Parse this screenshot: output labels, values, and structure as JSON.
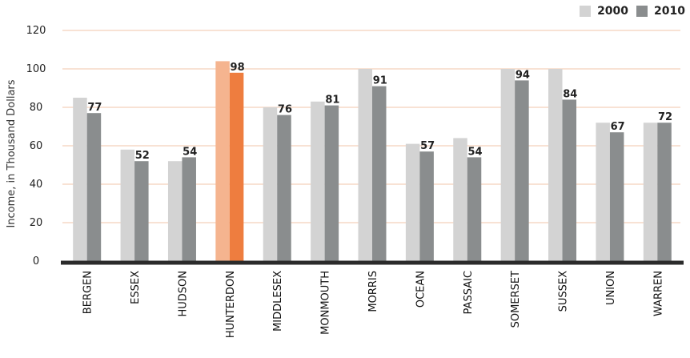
{
  "chart_data": {
    "type": "bar",
    "ylabel": "Income, in Thousand Dollars",
    "ylim": [
      0,
      120
    ],
    "yticks": [
      0,
      20,
      40,
      60,
      80,
      100,
      120
    ],
    "grid": true,
    "legend_position": "top-right",
    "categories": [
      "BERGEN",
      "ESSEX",
      "HUDSON",
      "HUNTERDON",
      "MIDDLESEX",
      "MONMOUTH",
      "MORRIS",
      "OCEAN",
      "PASSAIC",
      "SOMERSET",
      "SUSSEX",
      "UNION",
      "WARREN"
    ],
    "series": [
      {
        "name": "2000",
        "values": [
          85,
          58,
          52,
          104,
          80,
          83,
          100,
          61,
          64,
          100,
          100,
          72,
          72
        ],
        "color": "#d3d3d3",
        "highlight_color": "#f5b48f"
      },
      {
        "name": "2010",
        "values": [
          77,
          52,
          54,
          98,
          76,
          81,
          91,
          57,
          54,
          94,
          84,
          67,
          72
        ],
        "color": "#8a8d8e",
        "highlight_color": "#ee7d3f",
        "labels": [
          "77",
          "52",
          "54",
          "98",
          "76",
          "81",
          "91",
          "57",
          "54",
          "94",
          "84",
          "67",
          "72"
        ]
      }
    ],
    "highlight_category": "HUNTERDON",
    "grid_color": "#f6d8c6",
    "axis_color": "#2b2b2b"
  }
}
